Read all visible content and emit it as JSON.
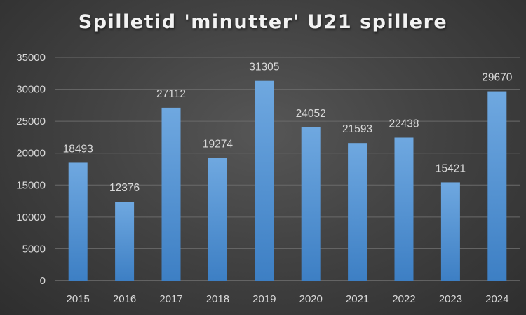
{
  "chart_data": {
    "type": "bar",
    "title": "Spilletid 'minutter' U21 spillere",
    "xlabel": "",
    "ylabel": "",
    "categories": [
      "2015",
      "2016",
      "2017",
      "2018",
      "2019",
      "2020",
      "2021",
      "2022",
      "2023",
      "2024"
    ],
    "values": [
      18493,
      12376,
      27112,
      19274,
      31305,
      24052,
      21593,
      22438,
      15421,
      29670
    ],
    "data_labels": [
      "18493",
      "12376",
      "27112",
      "19274",
      "31305",
      "24052",
      "21593",
      "22438",
      "15421",
      "29670"
    ],
    "ylim": [
      0,
      35000
    ],
    "yticks": [
      0,
      5000,
      10000,
      15000,
      20000,
      25000,
      30000,
      35000
    ],
    "ytick_labels": [
      "0",
      "5000",
      "10000",
      "15000",
      "20000",
      "25000",
      "30000",
      "35000"
    ],
    "grid": true,
    "legend": "none",
    "colors": {
      "bar_top": "#6fa8e0",
      "bar_bottom": "#3d7fc4",
      "grid": "#6a6a6a",
      "text": "#d9d9d9",
      "title": "#f2f2f2"
    }
  }
}
